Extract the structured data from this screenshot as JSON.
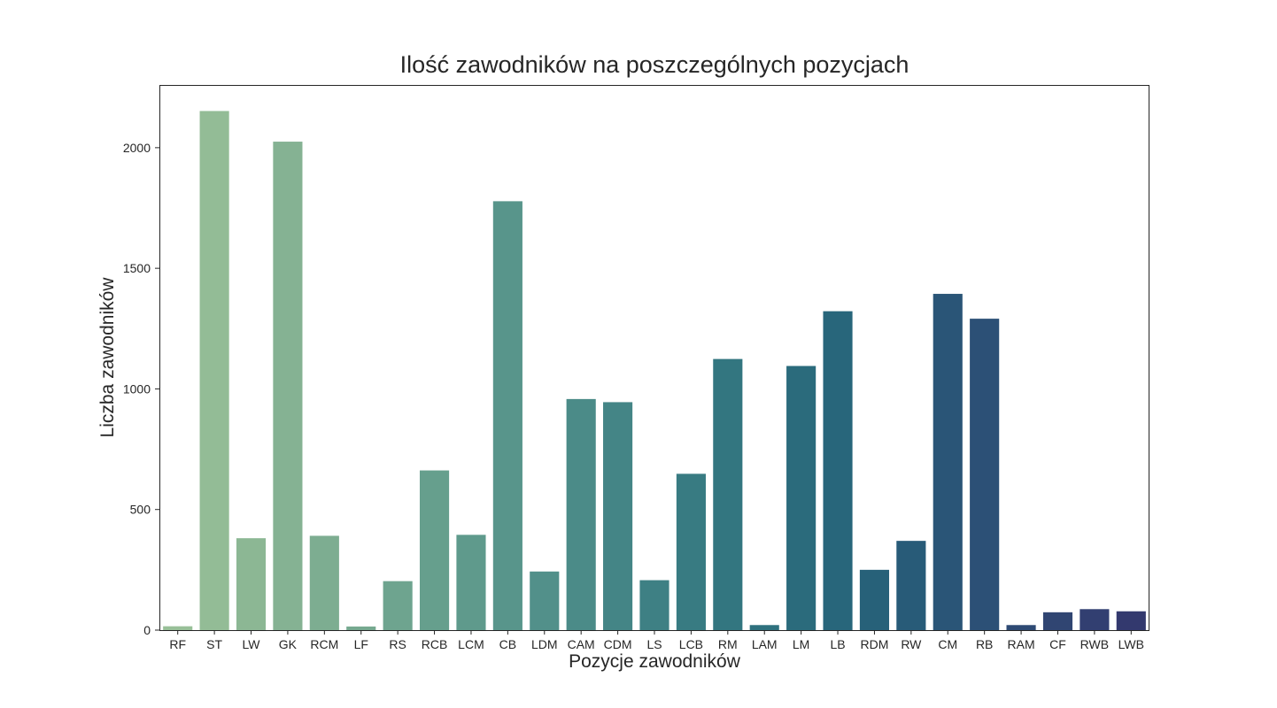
{
  "chart_data": {
    "type": "bar",
    "title": "Ilość zawodników na poszczególnych pozycjach",
    "xlabel": "Pozycje zawodników",
    "ylabel": "Liczba zawodników",
    "categories": [
      "RF",
      "ST",
      "LW",
      "GK",
      "RCM",
      "LF",
      "RS",
      "RCB",
      "LCM",
      "CB",
      "LDM",
      "CAM",
      "CDM",
      "LS",
      "LCB",
      "RM",
      "LAM",
      "LM",
      "LB",
      "RDM",
      "RW",
      "CM",
      "RB",
      "RAM",
      "CF",
      "RWB",
      "LWB"
    ],
    "values": [
      16,
      2152,
      381,
      2025,
      391,
      15,
      203,
      662,
      395,
      1778,
      243,
      958,
      945,
      207,
      648,
      1124,
      21,
      1095,
      1322,
      250,
      370,
      1394,
      1291,
      21,
      74,
      87,
      78
    ],
    "ylim": [
      0,
      2260
    ],
    "yticks": [
      0,
      500,
      1000,
      1500,
      2000
    ],
    "grid": false,
    "legend": "none",
    "colors": [
      "#98c098",
      "#93bc96",
      "#8cb794",
      "#85b293",
      "#7dad91",
      "#76a990",
      "#6ea48f",
      "#669f8d",
      "#5f9a8c",
      "#58958b",
      "#52908a",
      "#4b8b88",
      "#448586",
      "#3e8084",
      "#387b82",
      "#337680",
      "#2f717e",
      "#2b6b7c",
      "#28667b",
      "#276179",
      "#285b78",
      "#2a5577",
      "#2c5076",
      "#2e4a74",
      "#304572",
      "#323f71",
      "#33396e"
    ]
  }
}
